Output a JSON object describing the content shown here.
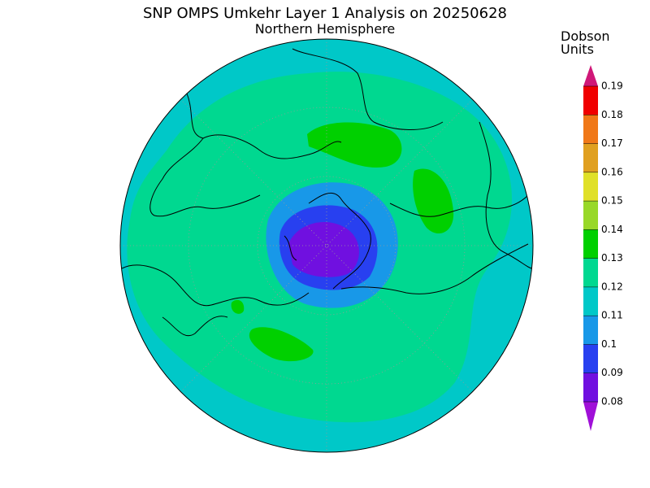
{
  "title": "SNP OMPS Umkehr Layer 1 Analysis on 20250628",
  "subtitle": "Northern Hemisphere",
  "colorbar": {
    "label_lines": [
      "Dobson",
      "Units"
    ],
    "ticks": [
      0.08,
      0.09,
      0.1,
      0.11,
      0.12,
      0.13,
      0.14,
      0.15,
      0.16,
      0.17,
      0.18,
      0.19
    ],
    "colors": [
      "#a010d8",
      "#7010e0",
      "#2840f0",
      "#1898e8",
      "#00c8c8",
      "#00d890",
      "#00d000",
      "#98d828",
      "#e0e028",
      "#e0a020",
      "#f07818",
      "#f00000",
      "#d01878"
    ]
  }
}
